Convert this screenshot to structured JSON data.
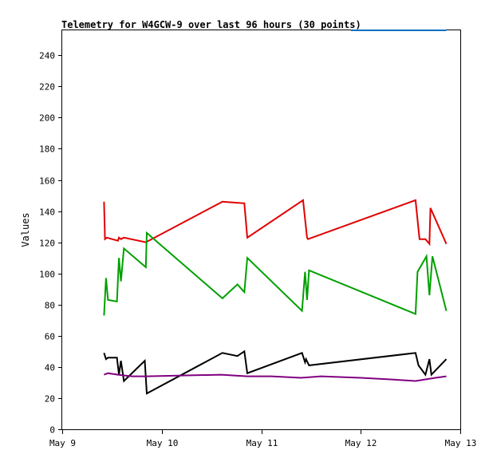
{
  "chart_data": {
    "type": "line",
    "title": "Telemetry for W4GCW-9 over last 96 hours (30 points)",
    "xlabel": "",
    "ylabel": "Values",
    "xlim": [
      0,
      4
    ],
    "ylim": [
      0,
      256
    ],
    "x_ticks": [
      {
        "value": 0,
        "label": "May 9"
      },
      {
        "value": 1,
        "label": "May 10"
      },
      {
        "value": 2,
        "label": "May 11"
      },
      {
        "value": 3,
        "label": "May 12"
      },
      {
        "value": 4,
        "label": "May 13"
      }
    ],
    "y_ticks": [
      0,
      20,
      40,
      60,
      80,
      100,
      120,
      140,
      160,
      180,
      200,
      220,
      240
    ],
    "grid": false,
    "series": [
      {
        "color": "#e00000",
        "points": [
          [
            0.42,
            146
          ],
          [
            0.43,
            122
          ],
          [
            0.45,
            123
          ],
          [
            0.5,
            122
          ],
          [
            0.56,
            121
          ],
          [
            0.57,
            123
          ],
          [
            0.59,
            122
          ],
          [
            0.62,
            123
          ],
          [
            0.84,
            120
          ],
          [
            1.61,
            146
          ],
          [
            1.83,
            145
          ],
          [
            1.86,
            123
          ],
          [
            2.42,
            147
          ],
          [
            2.46,
            123
          ],
          [
            2.47,
            122
          ],
          [
            3.55,
            147
          ],
          [
            3.59,
            122
          ],
          [
            3.65,
            122
          ],
          [
            3.69,
            119
          ],
          [
            3.7,
            142
          ],
          [
            3.86,
            119
          ]
        ]
      },
      {
        "color": "#00a000",
        "points": [
          [
            0.42,
            73
          ],
          [
            0.44,
            97
          ],
          [
            0.46,
            83
          ],
          [
            0.55,
            82
          ],
          [
            0.57,
            110
          ],
          [
            0.59,
            95
          ],
          [
            0.62,
            116
          ],
          [
            0.84,
            104
          ],
          [
            0.85,
            126
          ],
          [
            1.61,
            84
          ],
          [
            1.76,
            93
          ],
          [
            1.83,
            88
          ],
          [
            1.86,
            110
          ],
          [
            2.41,
            76
          ],
          [
            2.44,
            101
          ],
          [
            2.46,
            83
          ],
          [
            2.48,
            102
          ],
          [
            3.55,
            74
          ],
          [
            3.57,
            101
          ],
          [
            3.66,
            111
          ],
          [
            3.69,
            86
          ],
          [
            3.72,
            111
          ],
          [
            3.86,
            76
          ]
        ]
      },
      {
        "color": "#000000",
        "points": [
          [
            0.42,
            49
          ],
          [
            0.44,
            45
          ],
          [
            0.46,
            46
          ],
          [
            0.55,
            46
          ],
          [
            0.57,
            35
          ],
          [
            0.59,
            44
          ],
          [
            0.62,
            31
          ],
          [
            0.83,
            44
          ],
          [
            0.85,
            23
          ],
          [
            1.61,
            49
          ],
          [
            1.76,
            47
          ],
          [
            1.83,
            50
          ],
          [
            1.86,
            36
          ],
          [
            2.41,
            49
          ],
          [
            2.44,
            43
          ],
          [
            2.45,
            45
          ],
          [
            2.48,
            41
          ],
          [
            3.55,
            49
          ],
          [
            3.58,
            41
          ],
          [
            3.65,
            35
          ],
          [
            3.69,
            45
          ],
          [
            3.71,
            35
          ],
          [
            3.86,
            45
          ]
        ]
      },
      {
        "color": "#800080",
        "points": [
          [
            0.42,
            35
          ],
          [
            0.46,
            36
          ],
          [
            0.56,
            35
          ],
          [
            0.7,
            34
          ],
          [
            0.85,
            34
          ],
          [
            1.2,
            34.5
          ],
          [
            1.6,
            35
          ],
          [
            1.86,
            34
          ],
          [
            2.1,
            34
          ],
          [
            2.4,
            33
          ],
          [
            2.6,
            34
          ],
          [
            3.0,
            33
          ],
          [
            3.3,
            32
          ],
          [
            3.55,
            31
          ],
          [
            3.65,
            32
          ],
          [
            3.75,
            33
          ],
          [
            3.86,
            34
          ]
        ]
      },
      {
        "color": "#0070c0",
        "points": [
          [
            2.9,
            256
          ],
          [
            3.86,
            256
          ]
        ]
      }
    ]
  }
}
